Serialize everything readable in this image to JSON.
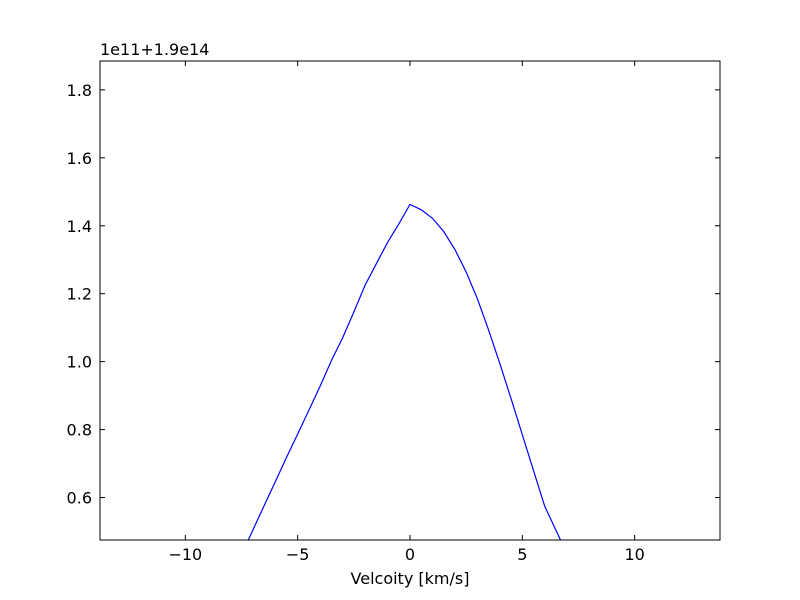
{
  "chart_data": {
    "type": "line",
    "title": "",
    "xlabel": "Velcoity [km/s]",
    "ylabel": "",
    "offset_label": "1e11+1.9e14",
    "xlim": [
      -13.8,
      13.8
    ],
    "ylim": [
      0.475,
      1.885
    ],
    "xticks": [
      -10,
      -5,
      0,
      5,
      10
    ],
    "xtick_labels": [
      "−10",
      "−5",
      "0",
      "5",
      "10"
    ],
    "yticks": [
      0.6,
      0.8,
      1.0,
      1.2,
      1.4,
      1.6,
      1.8
    ],
    "ytick_labels": [
      "0.6",
      "0.8",
      "1.0",
      "1.2",
      "1.4",
      "1.6",
      "1.8"
    ],
    "grid": false,
    "legend": "none",
    "series": [
      {
        "color": "#0000ff",
        "x": [
          -7.2,
          -6.5,
          -6.0,
          -5.5,
          -5.0,
          -4.5,
          -4.0,
          -3.5,
          -3.0,
          -2.5,
          -2.0,
          -1.5,
          -1.0,
          -0.5,
          0.0,
          0.5,
          1.0,
          1.5,
          2.0,
          2.5,
          3.0,
          3.5,
          4.0,
          4.5,
          5.0,
          5.5,
          6.0,
          6.7
        ],
        "y": [
          0.475,
          0.575,
          0.646,
          0.718,
          0.787,
          0.857,
          0.928,
          1.003,
          1.07,
          1.146,
          1.225,
          1.288,
          1.351,
          1.405,
          1.463,
          1.447,
          1.422,
          1.383,
          1.33,
          1.264,
          1.185,
          1.093,
          0.994,
          0.891,
          0.785,
          0.679,
          0.574,
          0.475
        ]
      }
    ]
  }
}
